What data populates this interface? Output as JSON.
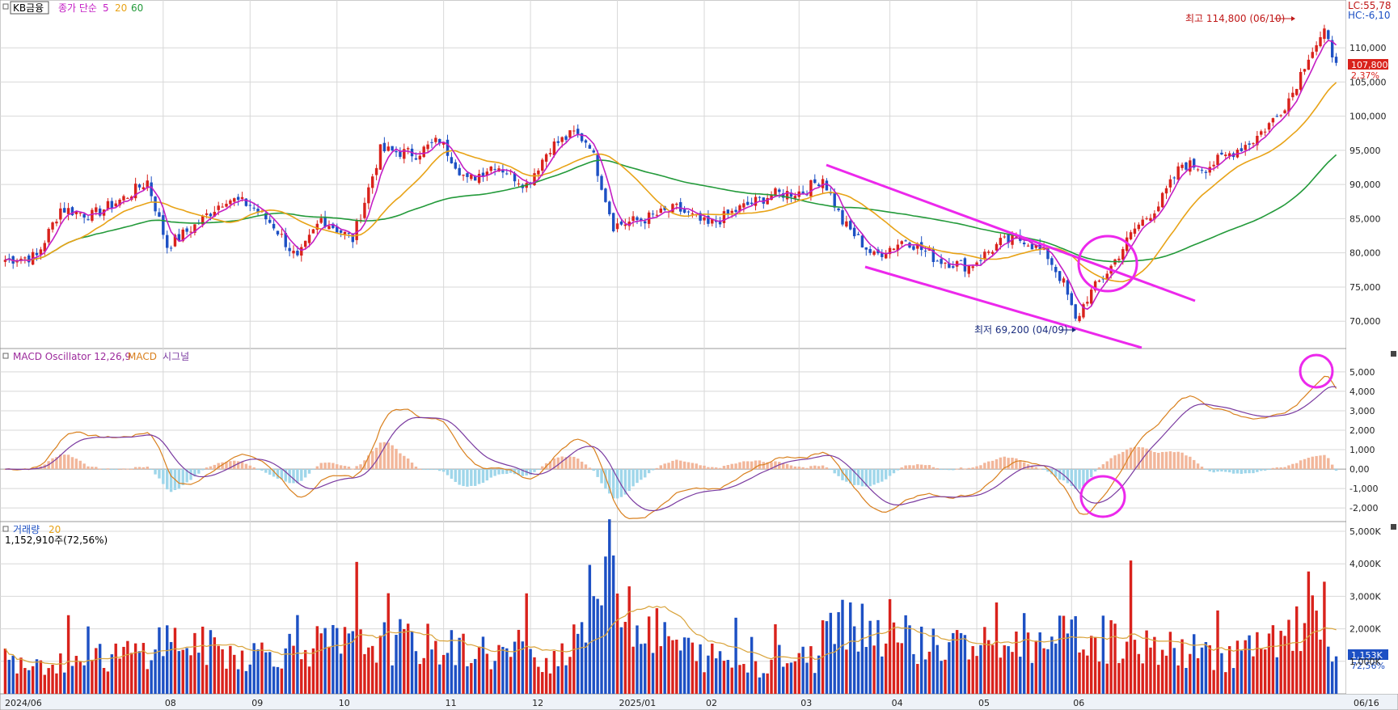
{
  "stock_name": "KB금융",
  "colors": {
    "up": "#d9221c",
    "down": "#1d50c4",
    "ma5": "#c41ec4",
    "ma20": "#e8a317",
    "ma60": "#239a3a",
    "annotation": "#ec28ec",
    "macd": "#7a3aa0",
    "signal": "#d9801e",
    "osc_pos": "#f2b69a",
    "osc_neg": "#9fd6ea",
    "vol_ma": "#d9a33a",
    "grid": "#d8d8d8"
  },
  "legend": {
    "price_label": "종가 단순",
    "ma5": "5",
    "ma20": "20",
    "ma60": "60",
    "macd_label": "MACD Oscillator 12,26,9",
    "macd_name": "MACD",
    "signal_name": "시그널",
    "volume_label": "거래량",
    "volume_ma": "20",
    "volume_current": "1,152,910주(72,56%)"
  },
  "header_right": {
    "lc": "LC:55,78",
    "hc": "HC:-6,10",
    "price_tag": "107,800",
    "change_tag": "2,37%",
    "vol_tag": "1,153K",
    "vol_pct_tag": "72,56%"
  },
  "annotations": {
    "high_label": "최고 114,800 (06/10)",
    "low_label": "최저 69,200 (04/09)"
  },
  "chart_data": {
    "type": "candlestick",
    "title": "KB금융",
    "period_start": "2024/06",
    "x_tick_labels": [
      "2024/06",
      "08",
      "09",
      "10",
      "11",
      "12",
      "2025/01",
      "02",
      "03",
      "04",
      "05",
      "06",
      "06/16"
    ],
    "price_axis": {
      "ylim": [
        66000,
        117000
      ],
      "ticks": [
        "70,000",
        "75,000",
        "80,000",
        "85,000",
        "90,000",
        "95,000",
        "100,000",
        "105,000",
        "110,000"
      ]
    },
    "price_keypoints": [
      [
        0,
        79000
      ],
      [
        8,
        79500
      ],
      [
        14,
        86500
      ],
      [
        22,
        85500
      ],
      [
        30,
        88000
      ],
      [
        36,
        90500
      ],
      [
        41,
        81000
      ],
      [
        48,
        84000
      ],
      [
        56,
        88000
      ],
      [
        62,
        87000
      ],
      [
        68,
        84000
      ],
      [
        74,
        79000
      ],
      [
        80,
        85000
      ],
      [
        88,
        82000
      ],
      [
        95,
        95000
      ],
      [
        104,
        94500
      ],
      [
        110,
        96500
      ],
      [
        117,
        90500
      ],
      [
        124,
        93000
      ],
      [
        132,
        90000
      ],
      [
        138,
        95500
      ],
      [
        144,
        97500
      ],
      [
        148,
        96000
      ],
      [
        154,
        84000
      ],
      [
        162,
        85000
      ],
      [
        170,
        86500
      ],
      [
        178,
        84000
      ],
      [
        186,
        86500
      ],
      [
        194,
        88500
      ],
      [
        202,
        89000
      ],
      [
        207,
        91000
      ],
      [
        212,
        84500
      ],
      [
        220,
        79500
      ],
      [
        228,
        82000
      ],
      [
        236,
        79000
      ],
      [
        244,
        78000
      ],
      [
        252,
        81500
      ],
      [
        258,
        82000
      ],
      [
        264,
        79500
      ],
      [
        268,
        75500
      ],
      [
        271,
        70000
      ],
      [
        274,
        73500
      ],
      [
        280,
        78000
      ],
      [
        286,
        83500
      ],
      [
        292,
        87000
      ],
      [
        298,
        93000
      ],
      [
        304,
        92500
      ],
      [
        310,
        94500
      ],
      [
        316,
        96500
      ],
      [
        322,
        100000
      ],
      [
        326,
        103500
      ],
      [
        330,
        109000
      ],
      [
        334,
        112000
      ],
      [
        337,
        107800
      ]
    ],
    "n_days": 338,
    "macd_axis": {
      "ylim": [
        -2700,
        6200
      ],
      "ticks": [
        "5,000",
        "4,000",
        "3,000",
        "2,000",
        "1,000",
        "0,00",
        "-1,000",
        "-2,000"
      ]
    },
    "volume_axis": {
      "ylim": [
        0,
        5000
      ],
      "ticks": [
        "5,000K",
        "4,000K",
        "3,000K",
        "2,000K",
        "1,000K"
      ]
    },
    "volume_keypoints": [
      [
        0,
        1100
      ],
      [
        20,
        1000
      ],
      [
        35,
        1300
      ],
      [
        40,
        1700
      ],
      [
        60,
        1200
      ],
      [
        80,
        1500
      ],
      [
        100,
        1600
      ],
      [
        120,
        1300
      ],
      [
        140,
        1100
      ],
      [
        154,
        4000
      ],
      [
        160,
        2200
      ],
      [
        175,
        1200
      ],
      [
        190,
        900
      ],
      [
        205,
        1100
      ],
      [
        212,
        2500
      ],
      [
        220,
        2000
      ],
      [
        240,
        1400
      ],
      [
        260,
        1500
      ],
      [
        272,
        1800
      ],
      [
        290,
        1400
      ],
      [
        310,
        1200
      ],
      [
        325,
        1600
      ],
      [
        330,
        2600
      ],
      [
        337,
        1153
      ]
    ],
    "high": {
      "value": 114800,
      "date": "06/10"
    },
    "low": {
      "value": 69200,
      "date": "04/09"
    }
  }
}
